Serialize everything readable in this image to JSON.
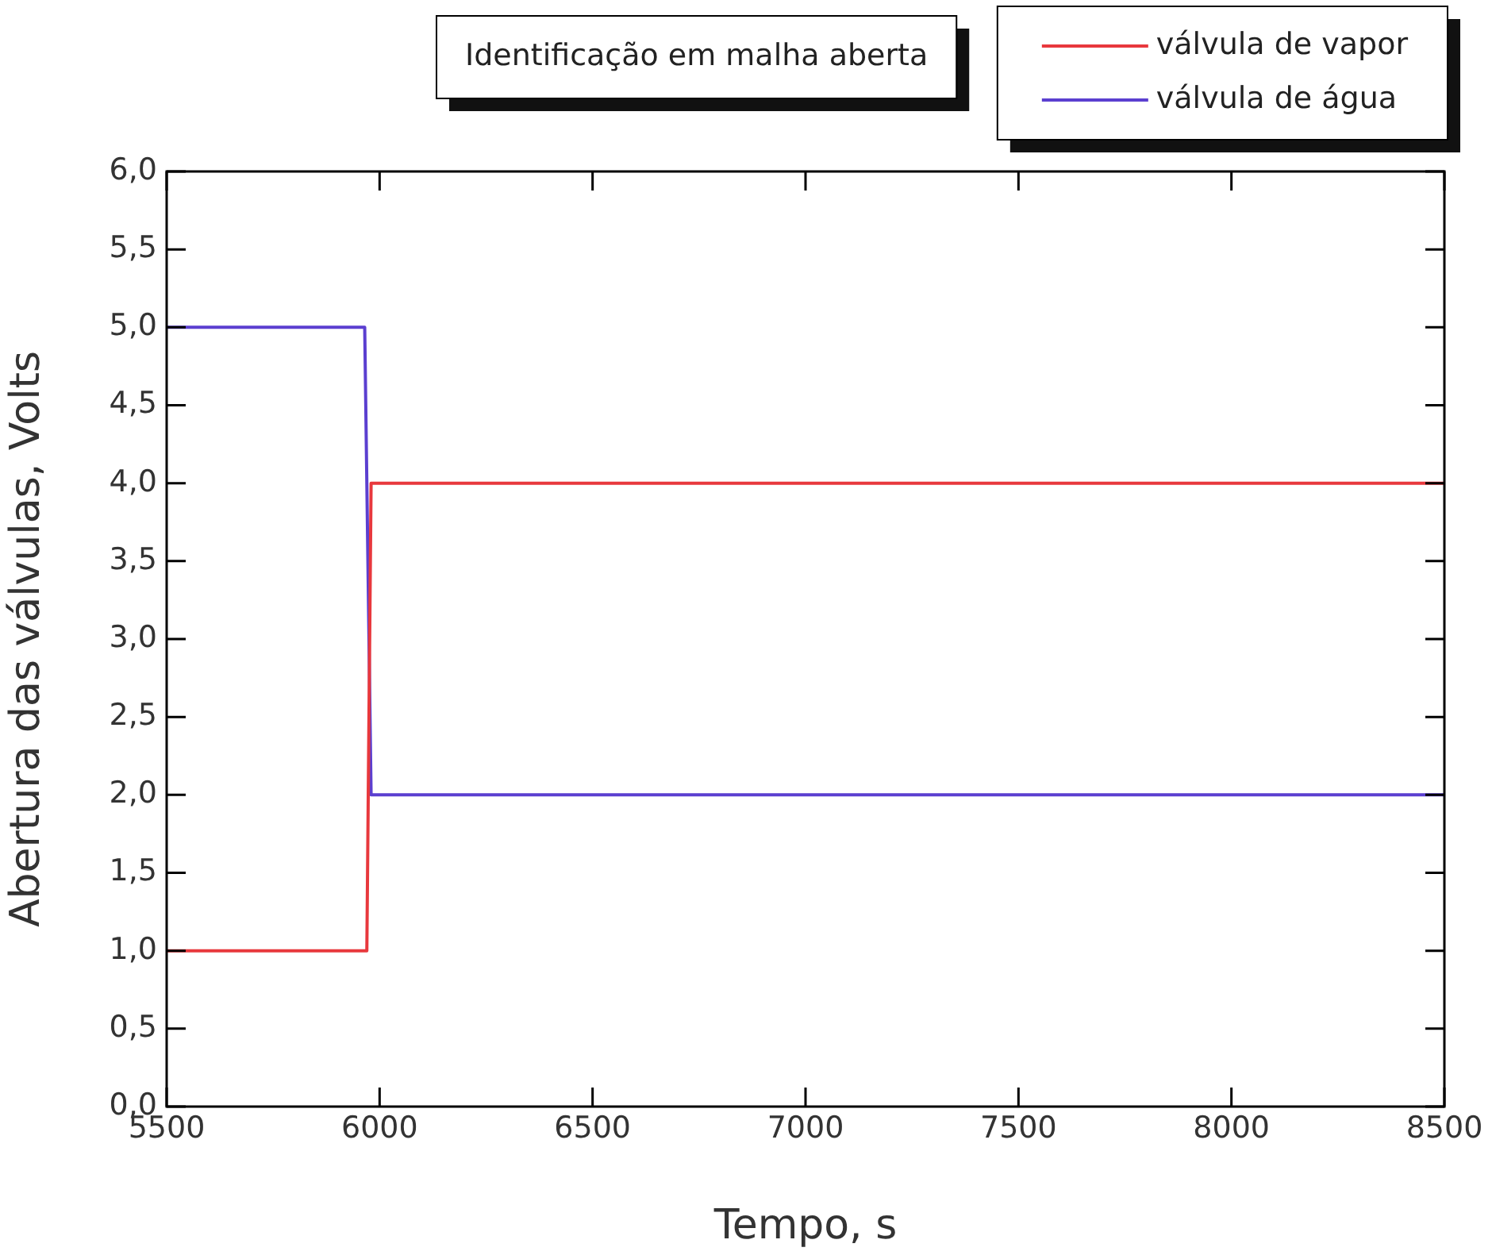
{
  "chart_data": {
    "type": "line",
    "title": "Identificação em malha aberta",
    "xlabel": "Tempo, s",
    "ylabel": "Abertura das válvulas, Volts",
    "series": [
      {
        "name": "válvula de vapor",
        "color": "#e8383d",
        "x": [
          5500,
          5970,
          5980,
          8500
        ],
        "values": [
          1,
          1,
          4,
          4
        ]
      },
      {
        "name": "válvula de água",
        "color": "#5b3fd0",
        "x": [
          5500,
          5965,
          5980,
          8500
        ],
        "values": [
          5,
          5,
          2,
          2
        ]
      }
    ],
    "xlim": [
      5500,
      8500
    ],
    "xticks": [
      5500,
      6000,
      6500,
      7000,
      7500,
      8000,
      8500
    ],
    "ylim": [
      0,
      6
    ],
    "yticks": [
      {
        "value": 0,
        "label": "0,0"
      },
      {
        "value": 0.5,
        "label": "0,5"
      },
      {
        "value": 1,
        "label": "1,0"
      },
      {
        "value": 1.5,
        "label": "1,5"
      },
      {
        "value": 2,
        "label": "2,0"
      },
      {
        "value": 2.5,
        "label": "2,5"
      },
      {
        "value": 3,
        "label": "3,0"
      },
      {
        "value": 3.5,
        "label": "3,5"
      },
      {
        "value": 4,
        "label": "4,0"
      },
      {
        "value": 4.5,
        "label": "4,5"
      },
      {
        "value": 5,
        "label": "5,0"
      },
      {
        "value": 5.5,
        "label": "5,5"
      },
      {
        "value": 6,
        "label": "6,0"
      }
    ],
    "grid": false,
    "legend": "top right",
    "marker": "none",
    "line_style": "solid"
  }
}
